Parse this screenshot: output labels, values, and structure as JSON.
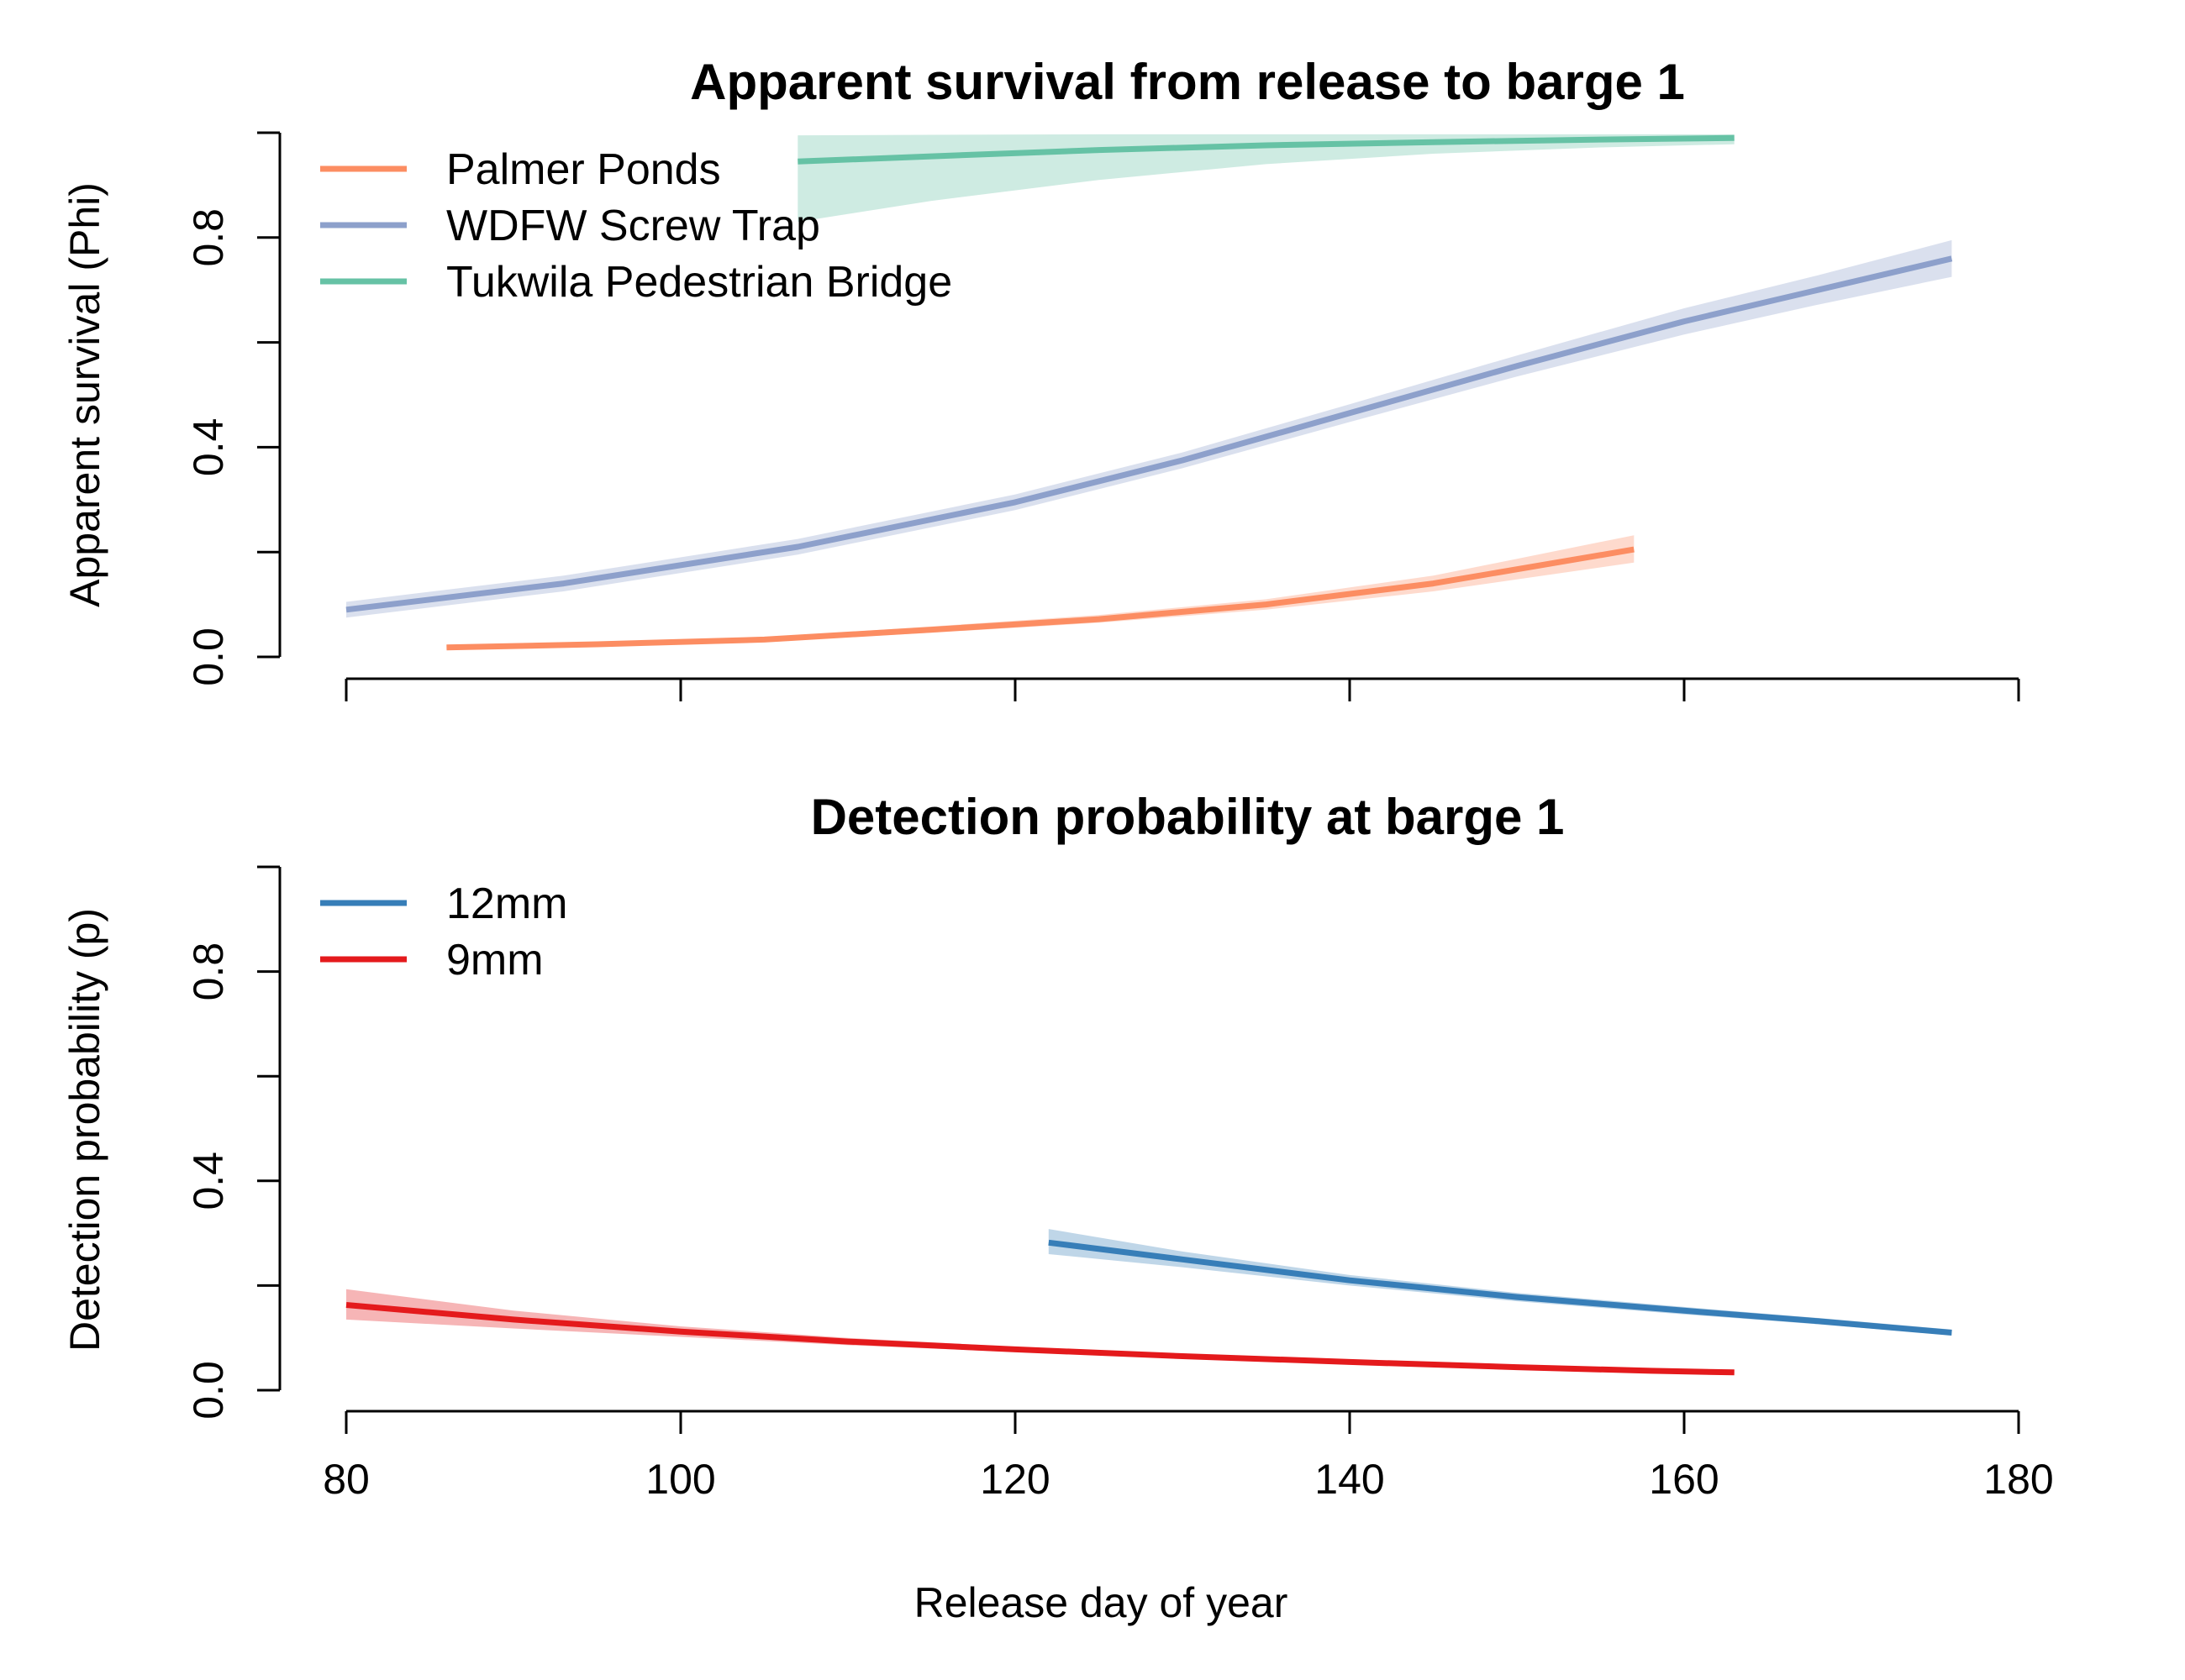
{
  "chart_data": [
    {
      "type": "line",
      "title": "Apparent survival from release to barge 1",
      "xlabel": "",
      "ylabel": "Apparent survival (Phi)",
      "xlim": [
        80,
        180
      ],
      "ylim": [
        0,
        1
      ],
      "x_ticks": [
        "80",
        "100",
        "120",
        "140",
        "160",
        "180"
      ],
      "y_ticks": [
        "0.0",
        "0.4",
        "0.8"
      ],
      "legend_position": "top-left",
      "series": [
        {
          "name": "Palmer Ponds",
          "color": "#fc8d62",
          "band_color": "#fc8d62",
          "points": [
            {
              "x": 86,
              "y": 0.018,
              "lo": 0.015,
              "hi": 0.022
            },
            {
              "x": 95,
              "y": 0.024,
              "lo": 0.021,
              "hi": 0.028
            },
            {
              "x": 105,
              "y": 0.033,
              "lo": 0.029,
              "hi": 0.037
            },
            {
              "x": 115,
              "y": 0.052,
              "lo": 0.046,
              "hi": 0.058
            },
            {
              "x": 125,
              "y": 0.072,
              "lo": 0.065,
              "hi": 0.08
            },
            {
              "x": 135,
              "y": 0.1,
              "lo": 0.09,
              "hi": 0.11
            },
            {
              "x": 145,
              "y": 0.14,
              "lo": 0.125,
              "hi": 0.155
            },
            {
              "x": 157,
              "y": 0.205,
              "lo": 0.18,
              "hi": 0.232
            }
          ]
        },
        {
          "name": "WDFW Screw Trap",
          "color": "#8da0cb",
          "band_color": "#8da0cb",
          "points": [
            {
              "x": 80,
              "y": 0.09,
              "lo": 0.075,
              "hi": 0.105
            },
            {
              "x": 93,
              "y": 0.14,
              "lo": 0.125,
              "hi": 0.155
            },
            {
              "x": 107,
              "y": 0.21,
              "lo": 0.195,
              "hi": 0.225
            },
            {
              "x": 120,
              "y": 0.295,
              "lo": 0.28,
              "hi": 0.31
            },
            {
              "x": 130,
              "y": 0.375,
              "lo": 0.36,
              "hi": 0.39
            },
            {
              "x": 140,
              "y": 0.465,
              "lo": 0.448,
              "hi": 0.482
            },
            {
              "x": 150,
              "y": 0.555,
              "lo": 0.535,
              "hi": 0.575
            },
            {
              "x": 160,
              "y": 0.64,
              "lo": 0.615,
              "hi": 0.665
            },
            {
              "x": 168,
              "y": 0.7,
              "lo": 0.672,
              "hi": 0.728
            },
            {
              "x": 176,
              "y": 0.76,
              "lo": 0.725,
              "hi": 0.795
            }
          ]
        },
        {
          "name": "Tukwila Pedestrian Bridge",
          "color": "#66c2a5",
          "band_color": "#66c2a5",
          "points": [
            {
              "x": 107,
              "y": 0.945,
              "lo": 0.83,
              "hi": 0.995
            },
            {
              "x": 115,
              "y": 0.955,
              "lo": 0.87,
              "hi": 0.996
            },
            {
              "x": 125,
              "y": 0.967,
              "lo": 0.91,
              "hi": 0.997
            },
            {
              "x": 135,
              "y": 0.976,
              "lo": 0.94,
              "hi": 0.997
            },
            {
              "x": 145,
              "y": 0.982,
              "lo": 0.96,
              "hi": 0.997
            },
            {
              "x": 155,
              "y": 0.987,
              "lo": 0.972,
              "hi": 0.997
            },
            {
              "x": 163,
              "y": 0.99,
              "lo": 0.978,
              "hi": 0.997
            }
          ]
        }
      ]
    },
    {
      "type": "line",
      "title": "Detection probability at barge 1",
      "xlabel": "Release day of year",
      "ylabel": "Detection probability (p)",
      "xlim": [
        80,
        180
      ],
      "ylim": [
        0,
        1
      ],
      "x_ticks": [
        "80",
        "100",
        "120",
        "140",
        "160",
        "180"
      ],
      "y_ticks": [
        "0.0",
        "0.4",
        "0.8"
      ],
      "legend_position": "top-left",
      "series": [
        {
          "name": "12mm",
          "color": "#377eb8",
          "band_color": "#377eb8",
          "points": [
            {
              "x": 122,
              "y": 0.282,
              "lo": 0.26,
              "hi": 0.308
            },
            {
              "x": 130,
              "y": 0.25,
              "lo": 0.235,
              "hi": 0.265
            },
            {
              "x": 140,
              "y": 0.21,
              "lo": 0.2,
              "hi": 0.22
            },
            {
              "x": 150,
              "y": 0.178,
              "lo": 0.17,
              "hi": 0.186
            },
            {
              "x": 160,
              "y": 0.152,
              "lo": 0.145,
              "hi": 0.159
            },
            {
              "x": 168,
              "y": 0.132,
              "lo": 0.126,
              "hi": 0.138
            },
            {
              "x": 176,
              "y": 0.11,
              "lo": 0.105,
              "hi": 0.116
            }
          ]
        },
        {
          "name": "9mm",
          "color": "#e41a1c",
          "band_color": "#e41a1c",
          "points": [
            {
              "x": 80,
              "y": 0.163,
              "lo": 0.135,
              "hi": 0.193
            },
            {
              "x": 90,
              "y": 0.135,
              "lo": 0.118,
              "hi": 0.152
            },
            {
              "x": 100,
              "y": 0.112,
              "lo": 0.102,
              "hi": 0.122
            },
            {
              "x": 110,
              "y": 0.093,
              "lo": 0.086,
              "hi": 0.1
            },
            {
              "x": 120,
              "y": 0.078,
              "lo": 0.073,
              "hi": 0.083
            },
            {
              "x": 130,
              "y": 0.065,
              "lo": 0.061,
              "hi": 0.069
            },
            {
              "x": 140,
              "y": 0.054,
              "lo": 0.05,
              "hi": 0.058
            },
            {
              "x": 150,
              "y": 0.044,
              "lo": 0.04,
              "hi": 0.048
            },
            {
              "x": 158,
              "y": 0.037,
              "lo": 0.033,
              "hi": 0.041
            },
            {
              "x": 163,
              "y": 0.034,
              "lo": 0.03,
              "hi": 0.038
            }
          ]
        }
      ]
    }
  ]
}
